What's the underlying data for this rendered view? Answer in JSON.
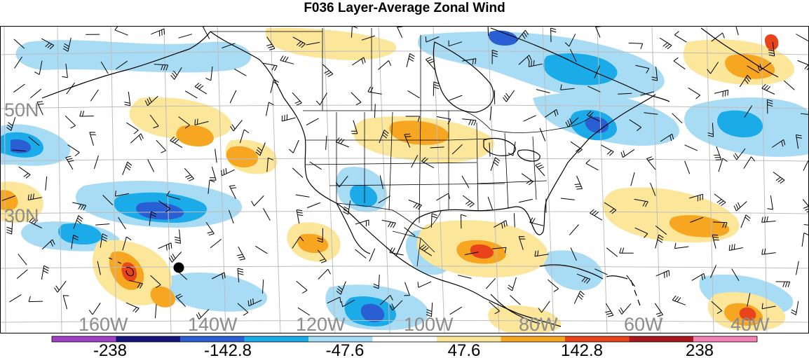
{
  "title": "F036 Layer-Average Zonal Wind",
  "map": {
    "lat_labels": [
      "50N",
      "30N"
    ],
    "lon_labels": [
      "160W",
      "140W",
      "120W",
      "100W",
      "80W",
      "60W",
      "40W"
    ],
    "label_color": "#8c8c8c",
    "marker": "station-dot"
  },
  "colorbar": {
    "colors": [
      "#a040c8",
      "#14147a",
      "#2a5fd4",
      "#1aabe8",
      "#a8dcf5",
      "#ffffff",
      "#fbe69a",
      "#f6a621",
      "#e8431a",
      "#a8181e",
      "#f383b4"
    ],
    "labels": [
      "-238",
      "-142.8",
      "-47.6",
      "47.6",
      "142.8",
      "238"
    ]
  },
  "legend_colors": {
    "strong_neg": "#2a5fd4",
    "neg": "#1aabe8",
    "weak_neg": "#a8dcf5",
    "weak_pos": "#fbe69a",
    "pos": "#f6a621",
    "strong_pos": "#e8431a"
  }
}
